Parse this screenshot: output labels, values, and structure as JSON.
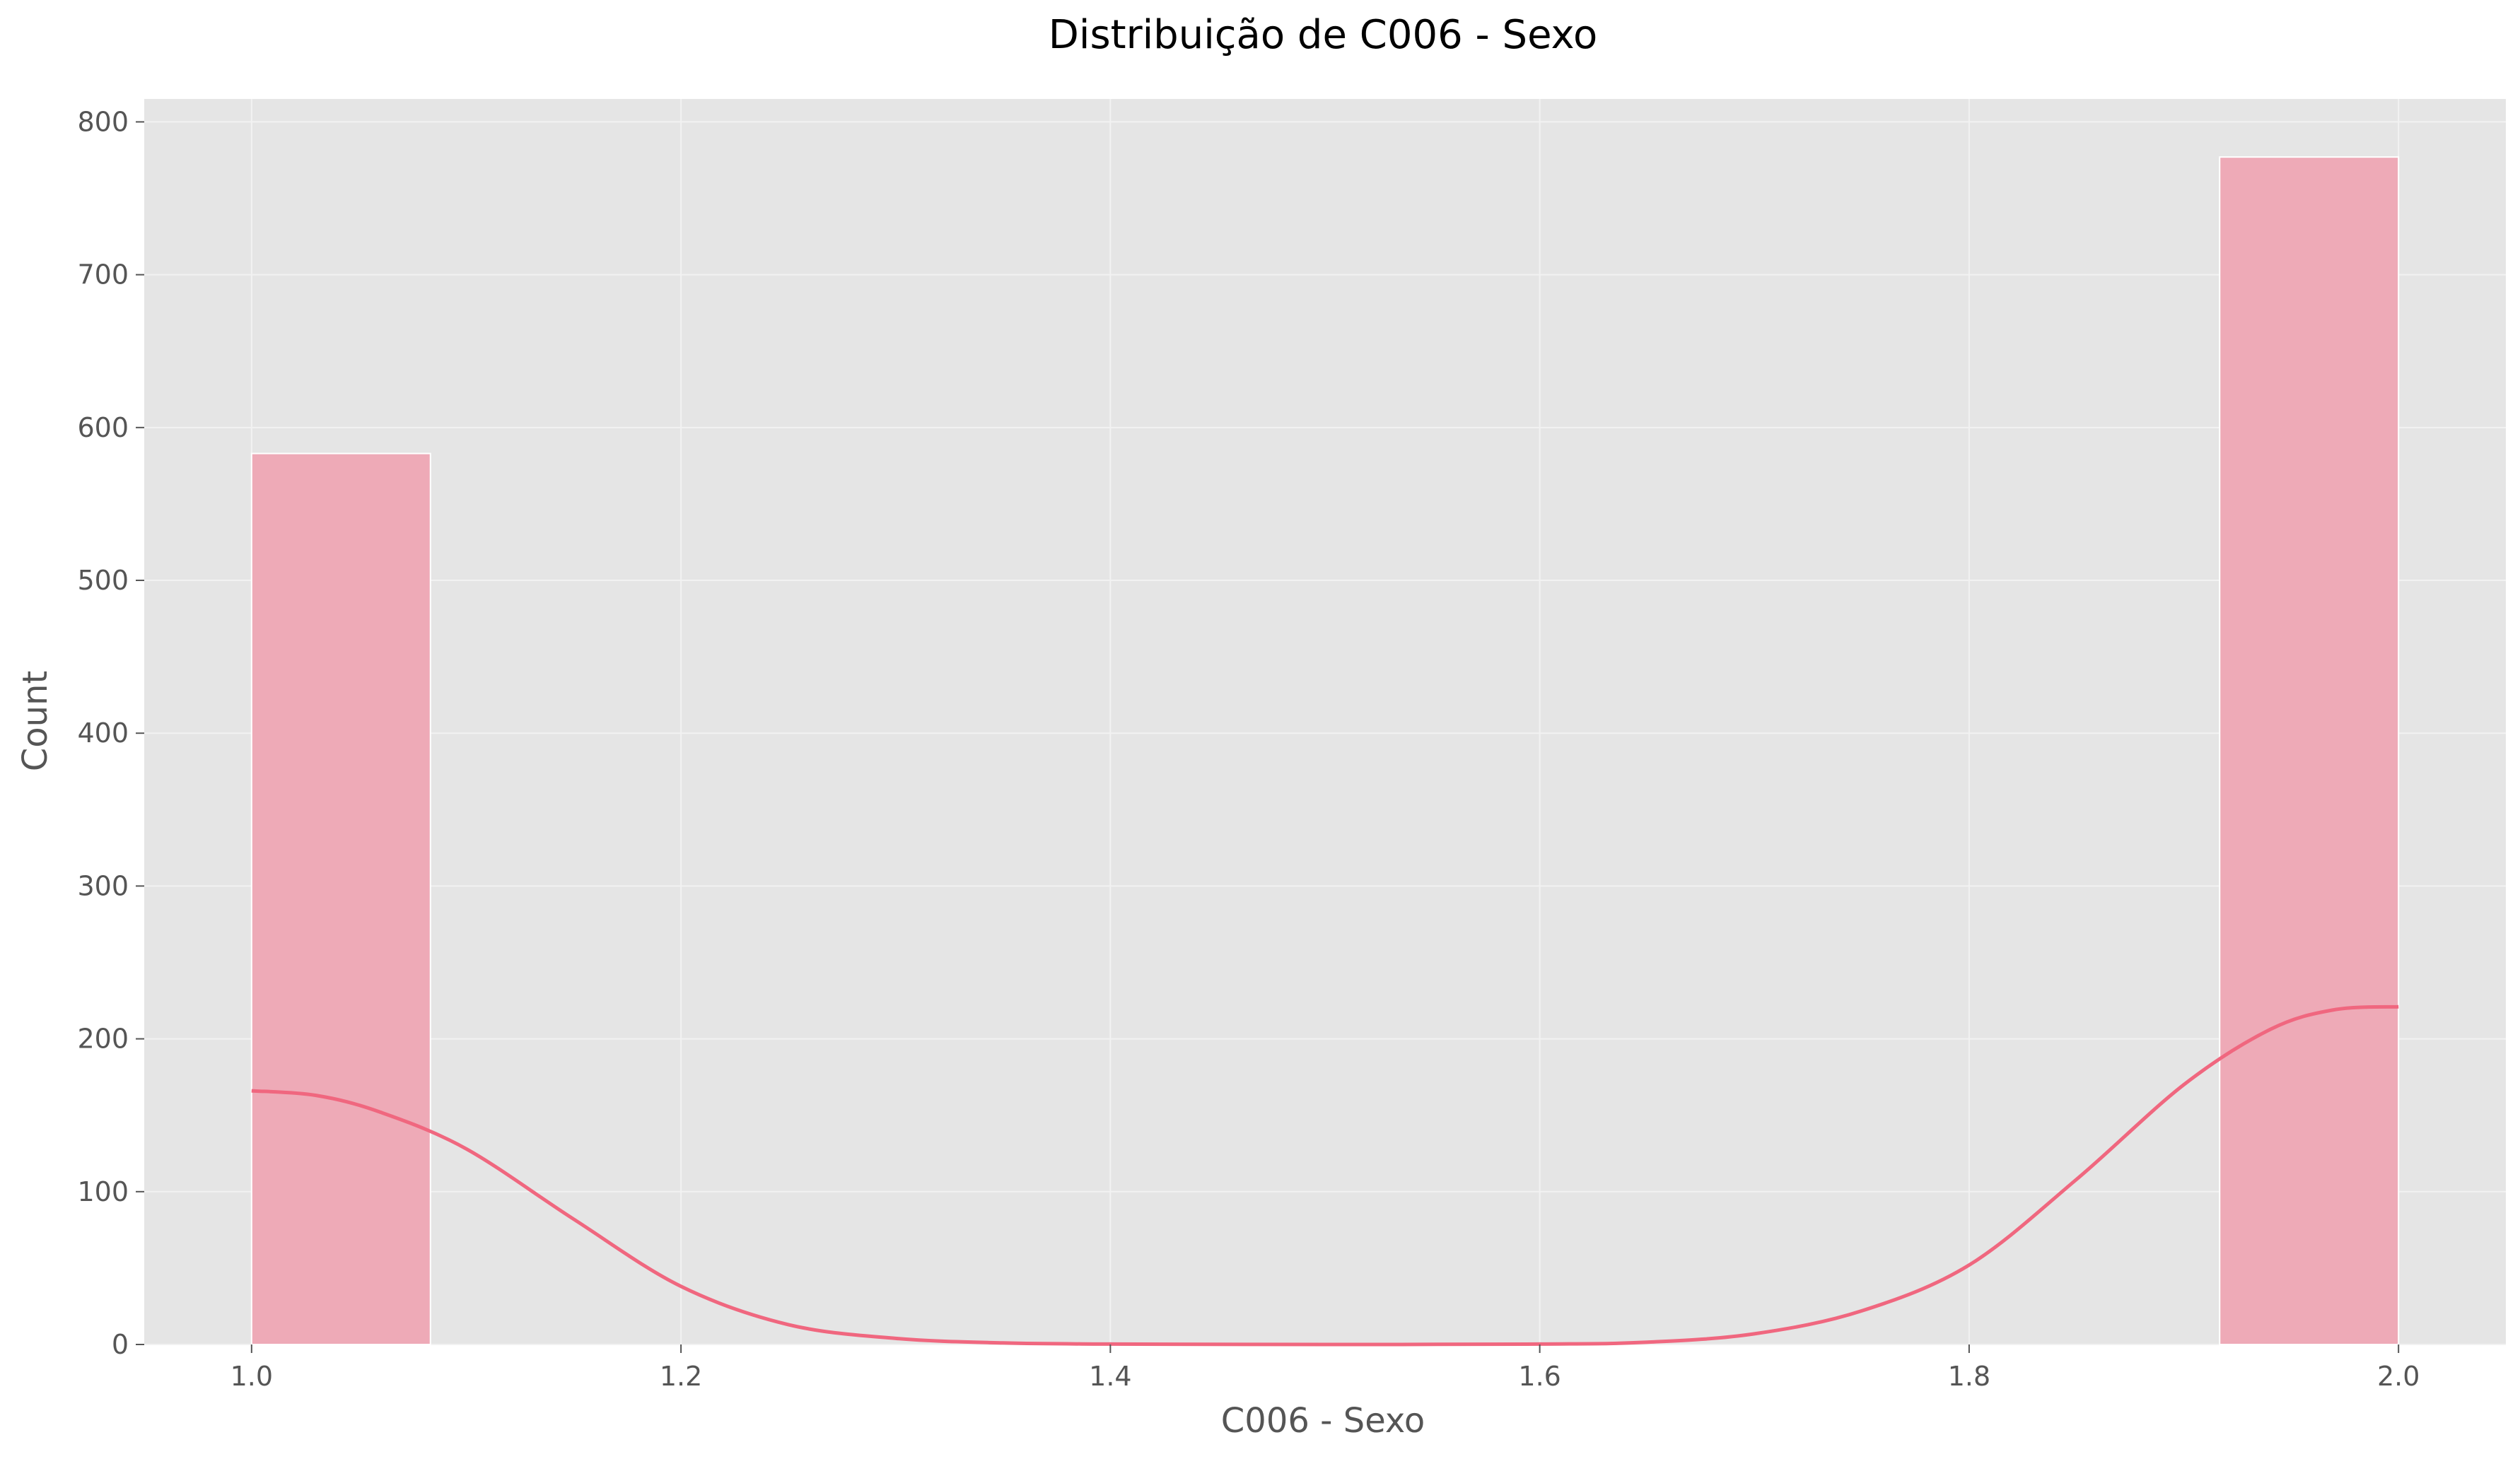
{
  "chart_data": {
    "type": "bar",
    "title": "Distribuição de C006 - Sexo",
    "xlabel": "C006 - Sexo",
    "ylabel": "Count",
    "xlim": [
      0.95,
      2.05
    ],
    "ylim": [
      0,
      815
    ],
    "xticks": [
      1.0,
      1.2,
      1.4,
      1.6,
      1.8,
      2.0
    ],
    "xtick_labels": [
      "1.0",
      "1.2",
      "1.4",
      "1.6",
      "1.8",
      "2.0"
    ],
    "yticks": [
      0,
      100,
      200,
      300,
      400,
      500,
      600,
      700,
      800
    ],
    "ytick_labels": [
      "0",
      "100",
      "200",
      "300",
      "400",
      "500",
      "600",
      "700",
      "800"
    ],
    "grid": true,
    "bins": [
      {
        "x0": 1.0,
        "x1": 1.0833,
        "count": 583
      },
      {
        "x0": 1.9167,
        "x1": 2.0,
        "count": 777
      }
    ],
    "kde_curve": {
      "x": [
        1.0,
        1.03,
        1.06,
        1.1,
        1.15,
        1.2,
        1.25,
        1.3,
        1.35,
        1.4,
        1.5,
        1.6,
        1.65,
        1.7,
        1.75,
        1.8,
        1.85,
        1.9,
        1.94,
        1.97,
        2.0
      ],
      "y": [
        166,
        163,
        152,
        128,
        82,
        38,
        13,
        4,
        1,
        0.3,
        0,
        0.3,
        1.5,
        7,
        22,
        52,
        108,
        170,
        206,
        219,
        221
      ]
    },
    "colors": {
      "background": "#ffffff",
      "plot_background": "#e5e5e5",
      "grid": "#f2f2f2",
      "bar_fill": "#eeaab7",
      "bar_edge": "#ffffff",
      "kde_line": "#f0677f",
      "tick_text": "#555555",
      "axis_label": "#555555",
      "title": "#000000"
    }
  }
}
